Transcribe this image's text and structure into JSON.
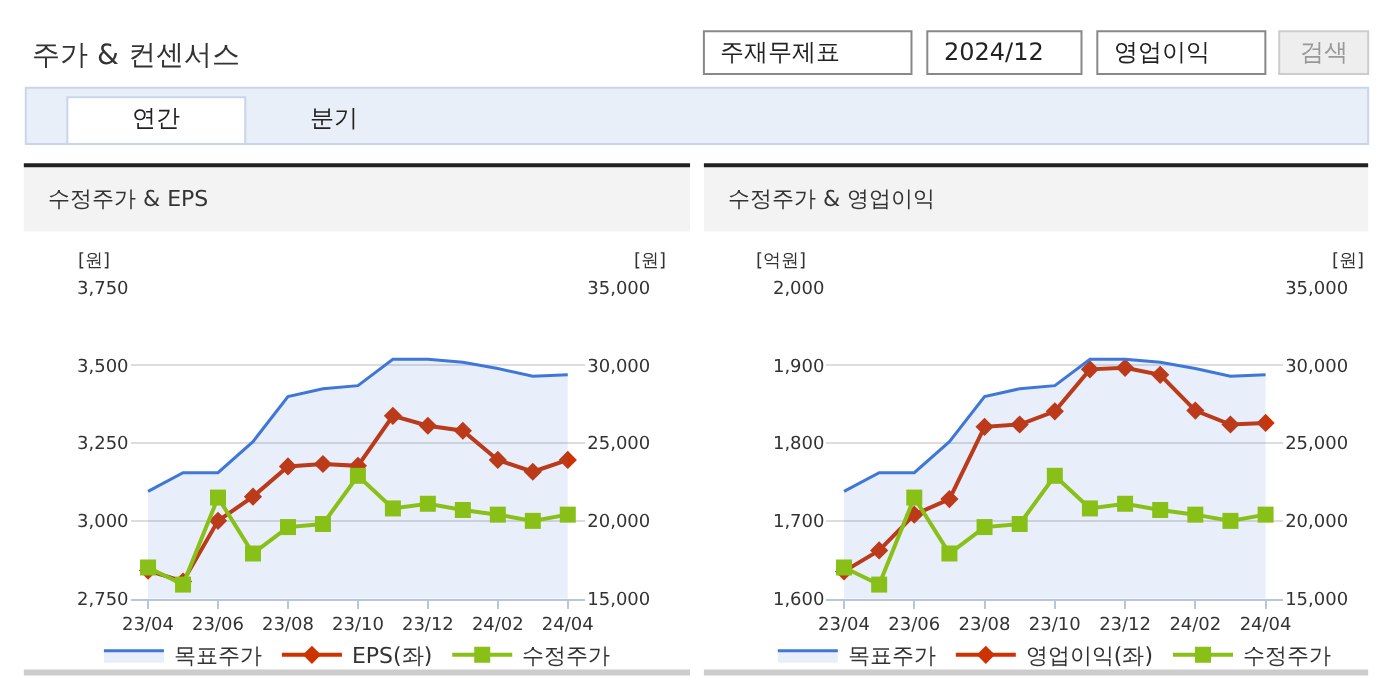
{
  "chart_data": [
    {
      "type": "other",
      "title": "주가 & 컨센서스",
      "annotations": [
        "주재무제표",
        "2024/12",
        "영업이익",
        "검색",
        "연간",
        "분기"
      ]
    },
    {
      "type": "line",
      "title": "수정주가 & EPS",
      "ylabel": "[원]",
      "y2label": "[원]",
      "categories": [
        "23/04",
        null,
        "23/06",
        null,
        "23/08",
        null,
        "23/10",
        null,
        "23/12",
        null,
        "24/02",
        null,
        "24/04"
      ],
      "series": [
        {
          "name": "목표주가",
          "type": "area",
          "axis": "y2",
          "color": "#3f77d8",
          "marker": "none",
          "values": [
            21900,
            23100,
            23100,
            25100,
            28000,
            28500,
            28700,
            30400,
            30400,
            30200,
            29800,
            29300,
            29400
          ]
        },
        {
          "name": "EPS(좌)",
          "type": "line",
          "color": "#cc3300",
          "marker": "diamond",
          "values": [
            2840,
            2805,
            3000,
            3078,
            3175,
            3183,
            3177,
            3338,
            3306,
            3290,
            3196,
            3158,
            3196
          ]
        },
        {
          "name": "수정주가",
          "type": "line",
          "axis": "y2",
          "color": "#88c017",
          "marker": "square",
          "values": [
            17000,
            15900,
            21500,
            17900,
            19600,
            19800,
            22900,
            20800,
            21100,
            20700,
            20400,
            20000,
            20400
          ]
        }
      ],
      "ylim": [
        2750,
        3750
      ],
      "yticks": [
        {
          "value": 2750,
          "label": "2,750"
        },
        {
          "value": 3000,
          "label": "3,000"
        },
        {
          "value": 3250,
          "label": "3,250"
        },
        {
          "value": 3500,
          "label": "3,500"
        },
        {
          "value": 3750,
          "label": "3,750"
        }
      ],
      "y2lim": [
        15000,
        35000
      ],
      "y2ticks": [
        {
          "value": 15000,
          "label": "15,000"
        },
        {
          "value": 20000,
          "label": "20,000"
        },
        {
          "value": 25000,
          "label": "25,000"
        },
        {
          "value": 30000,
          "label": "30,000"
        },
        {
          "value": 35000,
          "label": "35,000"
        }
      ],
      "grid": "y",
      "legend": "bottom"
    },
    {
      "type": "line",
      "title": "수정주가 & 영업이익",
      "ylabel": "[억원]",
      "y2label": "[원]",
      "categories": [
        "23/04",
        null,
        "23/06",
        null,
        "23/08",
        null,
        "23/10",
        null,
        "23/12",
        null,
        "24/02",
        null,
        "24/04"
      ],
      "series": [
        {
          "name": "목표주가",
          "type": "area",
          "axis": "y2",
          "color": "#3f77d8",
          "marker": "none",
          "values": [
            21900,
            23100,
            23100,
            25100,
            28000,
            28500,
            28700,
            30400,
            30400,
            30200,
            29800,
            29300,
            29400
          ]
        },
        {
          "name": "영업이익(좌)",
          "type": "line",
          "color": "#cc3300",
          "marker": "diamond",
          "values": [
            1635,
            1662,
            1708,
            1728,
            1821,
            1824,
            1841,
            1895,
            1897,
            1888,
            1842,
            1824,
            1826
          ]
        },
        {
          "name": "수정주가",
          "type": "line",
          "axis": "y2",
          "color": "#88c017",
          "marker": "square",
          "values": [
            17000,
            15900,
            21500,
            17900,
            19600,
            19800,
            22900,
            20800,
            21100,
            20700,
            20400,
            20000,
            20400
          ]
        }
      ],
      "ylim": [
        1600,
        2000
      ],
      "yticks": [
        {
          "value": 1600,
          "label": "1,600"
        },
        {
          "value": 1700,
          "label": "1,700"
        },
        {
          "value": 1800,
          "label": "1,800"
        },
        {
          "value": 1900,
          "label": "1,900"
        },
        {
          "value": 2000,
          "label": "2,000"
        }
      ],
      "y2lim": [
        15000,
        35000
      ],
      "y2ticks": [
        {
          "value": 15000,
          "label": "15,000"
        },
        {
          "value": 20000,
          "label": "20,000"
        },
        {
          "value": 25000,
          "label": "25,000"
        },
        {
          "value": 30000,
          "label": "30,000"
        },
        {
          "value": 35000,
          "label": "35,000"
        }
      ],
      "grid": "y",
      "legend": "bottom"
    }
  ]
}
